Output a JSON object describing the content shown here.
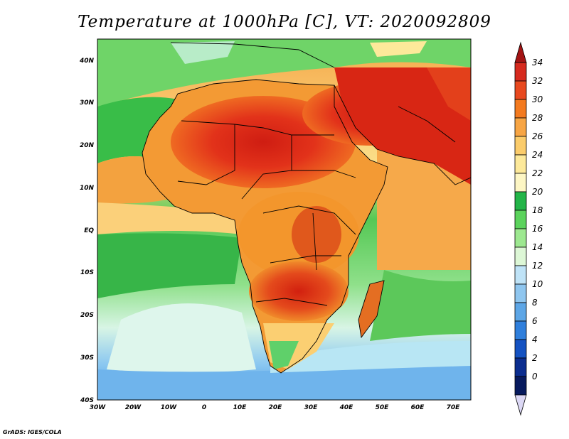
{
  "title": "Temperature at 1000hPa [C], VT: 2020092809",
  "credit": "GrADS: IGES/COLA",
  "map": {
    "lon_labels": [
      "30W",
      "20W",
      "10W",
      "0",
      "10E",
      "20E",
      "30E",
      "40E",
      "50E",
      "60E",
      "70E"
    ],
    "lat_labels": [
      "40N",
      "30N",
      "20N",
      "10N",
      "EQ",
      "10S",
      "20S",
      "30S",
      "40S"
    ],
    "lon_range": [
      -30,
      75
    ],
    "lat_range": [
      -40,
      44
    ]
  },
  "colorbar": {
    "labels": [
      "34",
      "32",
      "30",
      "28",
      "26",
      "24",
      "22",
      "20",
      "18",
      "16",
      "14",
      "12",
      "10",
      "8",
      "6",
      "4",
      "2",
      "0"
    ],
    "colors": [
      "#a31414",
      "#d62a1e",
      "#e8491f",
      "#f37a1f",
      "#f7a544",
      "#fbcc6b",
      "#fde99a",
      "#fdf6c4",
      "#23b548",
      "#5bd35c",
      "#9de890",
      "#ddf7d6",
      "#bfe3f7",
      "#8fc6ef",
      "#5da6e6",
      "#2f7fdc",
      "#1452c2",
      "#0b2d8f",
      "#071a5e",
      "#dcd8f5"
    ]
  }
}
